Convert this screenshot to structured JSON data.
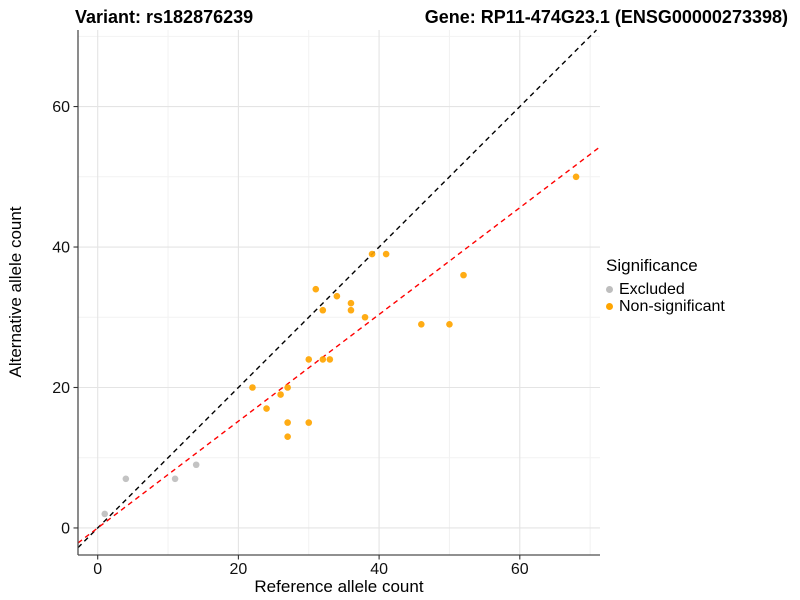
{
  "chart_data": {
    "type": "scatter",
    "titles": {
      "left": "Variant: rs182876239",
      "right": "Gene: RP11-474G23.1 (ENSG00000273398)"
    },
    "xlabel": "Reference allele count",
    "ylabel": "Alternative allele count",
    "xlim": [
      -2.8,
      71.4
    ],
    "ylim": [
      -3.85,
      70.9
    ],
    "x_ticks": [
      0,
      20,
      40,
      60
    ],
    "y_ticks": [
      0,
      20,
      40,
      60
    ],
    "x_minor_ticks": [
      10,
      30,
      50,
      70
    ],
    "y_minor_ticks": [
      10,
      30,
      50,
      70
    ],
    "grid": "on",
    "legend": {
      "title": "Significance",
      "position": "right",
      "items": [
        {
          "label": "Excluded",
          "color": "#BEBEBE"
        },
        {
          "label": "Non-significant",
          "color": "#FFA500"
        }
      ]
    },
    "series": [
      {
        "name": "Excluded",
        "color": "#BEBEBE",
        "points": [
          [
            1,
            2
          ],
          [
            4,
            7
          ],
          [
            11,
            7
          ],
          [
            14,
            9
          ]
        ]
      },
      {
        "name": "Non-significant",
        "color": "#FFA500",
        "points": [
          [
            22,
            20
          ],
          [
            24,
            17
          ],
          [
            26,
            19
          ],
          [
            27,
            13
          ],
          [
            27,
            15
          ],
          [
            27,
            20
          ],
          [
            30,
            15
          ],
          [
            30,
            24
          ],
          [
            31,
            34
          ],
          [
            32,
            24
          ],
          [
            32,
            31
          ],
          [
            33,
            24
          ],
          [
            34,
            33
          ],
          [
            36,
            31
          ],
          [
            36,
            32
          ],
          [
            38,
            30
          ],
          [
            39,
            39
          ],
          [
            41,
            39
          ],
          [
            46,
            29
          ],
          [
            50,
            29
          ],
          [
            52,
            36
          ],
          [
            68,
            50
          ]
        ]
      }
    ],
    "lines": [
      {
        "name": "identity-line",
        "equation": "y = x",
        "slope": 1,
        "intercept": 0,
        "color": "#000000",
        "style": "dashed"
      },
      {
        "name": "fit-line",
        "equation": "y = 0.76x",
        "slope": 0.76,
        "intercept": 0,
        "color": "#FF0000",
        "style": "dashed"
      }
    ]
  }
}
